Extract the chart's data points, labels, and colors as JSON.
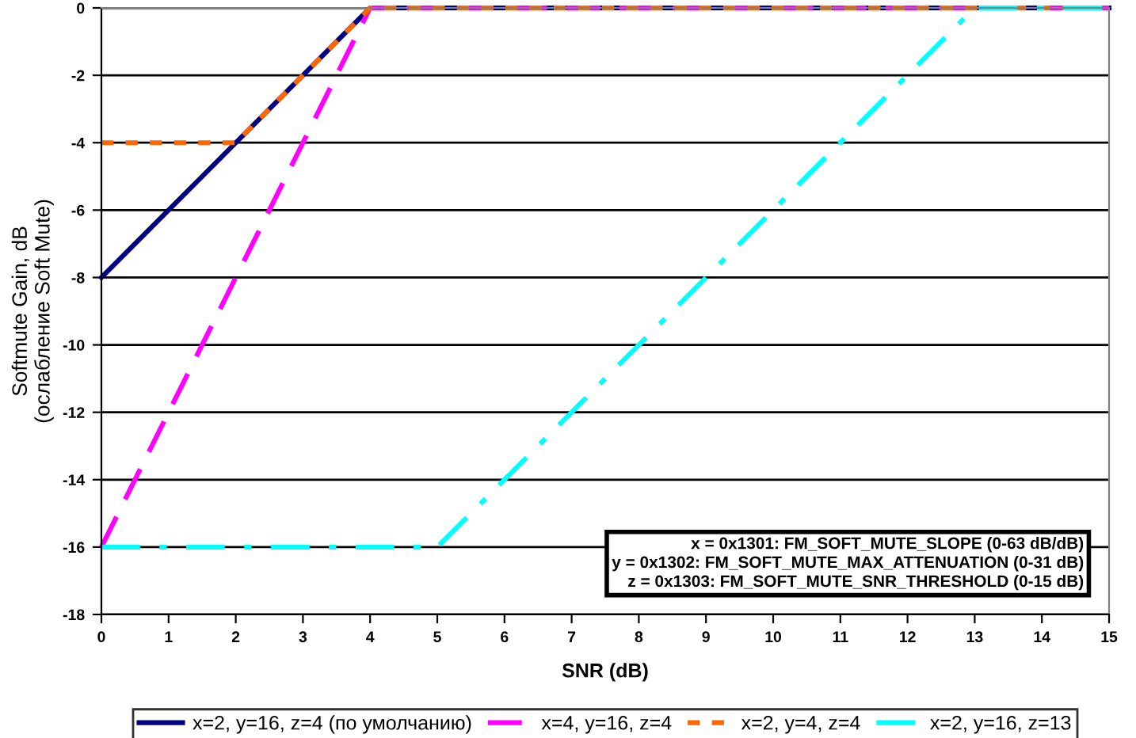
{
  "chart_data": {
    "type": "line",
    "xlabel": "SNR (dB)",
    "ylabel": "Softmute Gain, dB\n(ослабление Soft Mute)",
    "series": [
      {
        "name": "x=2, y=16, z=4 (по умолчанию)",
        "color": "#000080",
        "line_style": "solid",
        "x": [
          0,
          4,
          15
        ],
        "values": [
          -8,
          0,
          0
        ]
      },
      {
        "name": "x=4, y=16, z=4",
        "color": "#ff00ff",
        "line_style": "dashed",
        "x": [
          0,
          4,
          15
        ],
        "values": [
          -16,
          0,
          0
        ]
      },
      {
        "name": "x=2, y=4, z=4",
        "color": "#ff6600",
        "line_style": "dotted",
        "x": [
          0,
          2,
          4,
          15
        ],
        "values": [
          -4,
          -4,
          0,
          0
        ]
      },
      {
        "name": "x=2, y=16, z=13",
        "color": "#00ffff",
        "line_style": "dashdot",
        "x": [
          0,
          5,
          13,
          15
        ],
        "values": [
          -16,
          -16,
          0,
          0
        ]
      }
    ],
    "annotations": [
      "x = 0x1301: FM_SOFT_MUTE_SLOPE (0-63 dB/dB)",
      "y = 0x1302: FM_SOFT_MUTE_MAX_ATTENUATION (0-31 dB)",
      "z = 0x1303: FM_SOFT_MUTE_SNR_THRESHOLD (0-15 dB)"
    ],
    "xlim": [
      0,
      15
    ],
    "xticks": [
      0,
      1,
      2,
      3,
      4,
      5,
      6,
      7,
      8,
      9,
      10,
      11,
      12,
      13,
      14,
      15
    ],
    "ylim": [
      -18,
      0
    ],
    "yticks": [
      -18,
      -16,
      -14,
      -12,
      -10,
      -8,
      -6,
      -4,
      -2,
      0
    ],
    "grid": "y",
    "legend": "bottom",
    "marker": "none"
  }
}
